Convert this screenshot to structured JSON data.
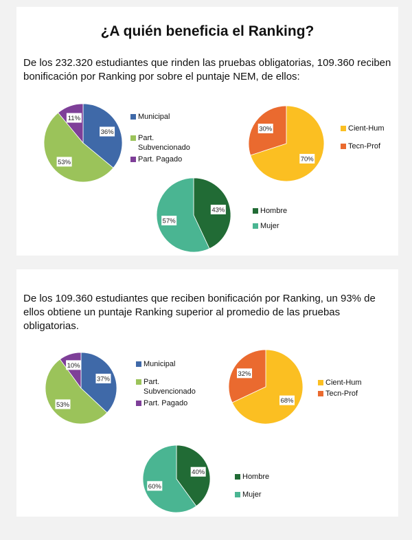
{
  "title": "¿A quién beneficia el Ranking?",
  "section1": {
    "text": "De los 232.320 estudiantes que rinden las pruebas obligatorias, 109.360 reciben bonificación por Ranking por sobre el puntaje NEM, de ellos:"
  },
  "section2": {
    "text": "De los 109.360 estudiantes que reciben bonificación por Ranking, un 93% de ellos  obtiene un puntaje Ranking superior al promedio de las pruebas obligatorias."
  },
  "chart_data": [
    {
      "type": "pie",
      "id": "s1-dependencia",
      "categories": [
        "Municipal",
        "Part. Subvencionado",
        "Part. Pagado"
      ],
      "values": [
        36,
        53,
        11
      ],
      "labels": [
        "36%",
        "53%",
        "11%"
      ],
      "colors": [
        "#3f69a8",
        "#9bc35a",
        "#7e3f98"
      ],
      "legend": "right"
    },
    {
      "type": "pie",
      "id": "s1-modalidad",
      "categories": [
        "Cient-Hum",
        "Tecn-Prof"
      ],
      "values": [
        70,
        30
      ],
      "labels": [
        "70%",
        "30%"
      ],
      "colors": [
        "#fbbf22",
        "#ea6a2f"
      ],
      "legend": "right"
    },
    {
      "type": "pie",
      "id": "s1-sexo",
      "categories": [
        "Hombre",
        "Mujer"
      ],
      "values": [
        43,
        57
      ],
      "labels": [
        "43%",
        "57%"
      ],
      "colors": [
        "#216b35",
        "#4ab592"
      ],
      "legend": "right"
    },
    {
      "type": "pie",
      "id": "s2-dependencia",
      "categories": [
        "Municipal",
        "Part. Subvencionado",
        "Part. Pagado"
      ],
      "values": [
        37,
        53,
        10
      ],
      "labels": [
        "37%",
        "53%",
        "10%"
      ],
      "colors": [
        "#3f69a8",
        "#9bc35a",
        "#7e3f98"
      ],
      "legend": "right"
    },
    {
      "type": "pie",
      "id": "s2-modalidad",
      "categories": [
        "Cient-Hum",
        "Tecn-Prof"
      ],
      "values": [
        68,
        32
      ],
      "labels": [
        "68%",
        "32%"
      ],
      "colors": [
        "#fbbf22",
        "#ea6a2f"
      ],
      "legend": "right"
    },
    {
      "type": "pie",
      "id": "s2-sexo",
      "categories": [
        "Hombre",
        "Mujer"
      ],
      "values": [
        40,
        60
      ],
      "labels": [
        "40%",
        "60%"
      ],
      "colors": [
        "#216b35",
        "#4ab592"
      ],
      "legend": "right"
    }
  ]
}
